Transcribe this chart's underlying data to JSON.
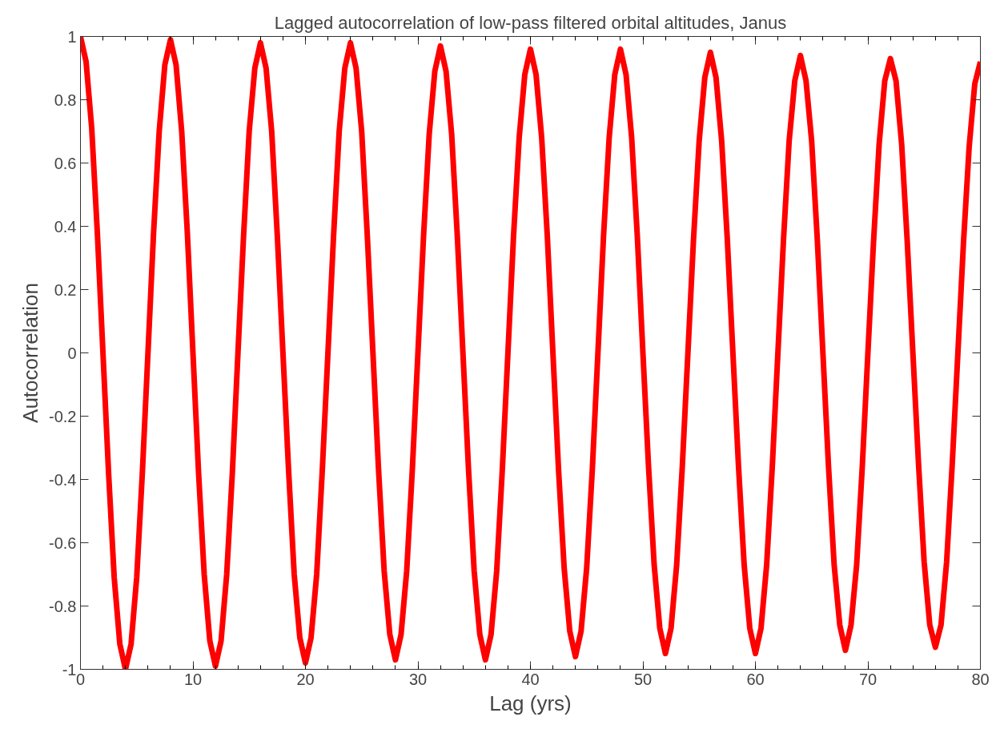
{
  "chart_data": {
    "type": "line",
    "title": "Lagged autocorrelation of low-pass filtered orbital altitudes, Janus",
    "xlabel": "Lag (yrs)",
    "ylabel": "Autocorrelation",
    "xlim": [
      0,
      80
    ],
    "ylim": [
      -1,
      1
    ],
    "xticks": [
      0,
      10,
      20,
      30,
      40,
      50,
      60,
      70,
      80
    ],
    "yticks": [
      -1,
      -0.8,
      -0.6,
      -0.4,
      -0.2,
      0,
      0.2,
      0.4,
      0.6,
      0.8,
      1
    ],
    "grid": false,
    "marker": "none",
    "line_style": "solid",
    "x": [
      0,
      0.5,
      1,
      1.5,
      2,
      2.5,
      3,
      3.5,
      4,
      4.5,
      5,
      5.5,
      6,
      6.5,
      7,
      7.5,
      8,
      8.5,
      9,
      9.5,
      10,
      10.5,
      11,
      11.5,
      12,
      12.5,
      13,
      13.5,
      14,
      14.5,
      15,
      15.5,
      16,
      16.5,
      17,
      17.5,
      18,
      18.5,
      19,
      19.5,
      20,
      20.5,
      21,
      21.5,
      22,
      22.5,
      23,
      23.5,
      24,
      24.5,
      25,
      25.5,
      26,
      26.5,
      27,
      27.5,
      28,
      28.5,
      29,
      29.5,
      30,
      30.5,
      31,
      31.5,
      32,
      32.5,
      33,
      33.5,
      34,
      34.5,
      35,
      35.5,
      36,
      36.5,
      37,
      37.5,
      38,
      38.5,
      39,
      39.5,
      40,
      40.5,
      41,
      41.5,
      42,
      42.5,
      43,
      43.5,
      44,
      44.5,
      45,
      45.5,
      46,
      46.5,
      47,
      47.5,
      48,
      48.5,
      49,
      49.5,
      50,
      50.5,
      51,
      51.5,
      52,
      52.5,
      53,
      53.5,
      54,
      54.5,
      55,
      55.5,
      56,
      56.5,
      57,
      57.5,
      58,
      58.5,
      59,
      59.5,
      60,
      60.5,
      61,
      61.5,
      62,
      62.5,
      63,
      63.5,
      64,
      64.5,
      65,
      65.5,
      66,
      66.5,
      67,
      67.5,
      68,
      68.5,
      69,
      69.5,
      70,
      70.5,
      71,
      71.5,
      72,
      72.5,
      73,
      73.5,
      74,
      74.5,
      75,
      75.5,
      76,
      76.5,
      77,
      77.5,
      78,
      78.5,
      79,
      79.5,
      80
    ],
    "series": [
      {
        "color": "#ff0000",
        "values": [
          1,
          0.92,
          0.71,
          0.38,
          0,
          -0.38,
          -0.71,
          -0.92,
          -1,
          -0.92,
          -0.71,
          -0.38,
          0,
          0.38,
          0.7,
          0.91,
          0.99,
          0.91,
          0.7,
          0.38,
          0,
          -0.38,
          -0.7,
          -0.91,
          -0.99,
          -0.91,
          -0.7,
          -0.38,
          0,
          0.37,
          0.7,
          0.9,
          0.98,
          0.9,
          0.7,
          0.37,
          0,
          -0.37,
          -0.7,
          -0.9,
          -0.98,
          -0.9,
          -0.7,
          -0.37,
          0,
          0.37,
          0.7,
          0.9,
          0.98,
          0.9,
          0.7,
          0.37,
          0,
          -0.37,
          -0.69,
          -0.89,
          -0.97,
          -0.89,
          -0.69,
          -0.37,
          0,
          0.37,
          0.69,
          0.89,
          0.97,
          0.89,
          0.69,
          0.37,
          0,
          -0.37,
          -0.69,
          -0.89,
          -0.97,
          -0.89,
          -0.69,
          -0.37,
          0,
          0.37,
          0.68,
          0.88,
          0.96,
          0.88,
          0.68,
          0.37,
          0,
          -0.37,
          -0.68,
          -0.88,
          -0.96,
          -0.88,
          -0.68,
          -0.37,
          0,
          0.37,
          0.68,
          0.88,
          0.96,
          0.88,
          0.68,
          0.37,
          0,
          -0.36,
          -0.67,
          -0.87,
          -0.95,
          -0.87,
          -0.67,
          -0.36,
          0,
          0.36,
          0.67,
          0.87,
          0.95,
          0.87,
          0.67,
          0.36,
          0,
          -0.36,
          -0.67,
          -0.87,
          -0.95,
          -0.87,
          -0.67,
          -0.36,
          0,
          0.36,
          0.67,
          0.86,
          0.94,
          0.86,
          0.67,
          0.36,
          0,
          -0.36,
          -0.67,
          -0.86,
          -0.94,
          -0.86,
          -0.67,
          -0.36,
          0,
          0.35,
          0.66,
          0.86,
          0.93,
          0.86,
          0.66,
          0.35,
          0,
          -0.35,
          -0.66,
          -0.86,
          -0.93,
          -0.86,
          -0.66,
          -0.35,
          0,
          0.35,
          0.65,
          0.85,
          0.92
        ]
      }
    ]
  }
}
